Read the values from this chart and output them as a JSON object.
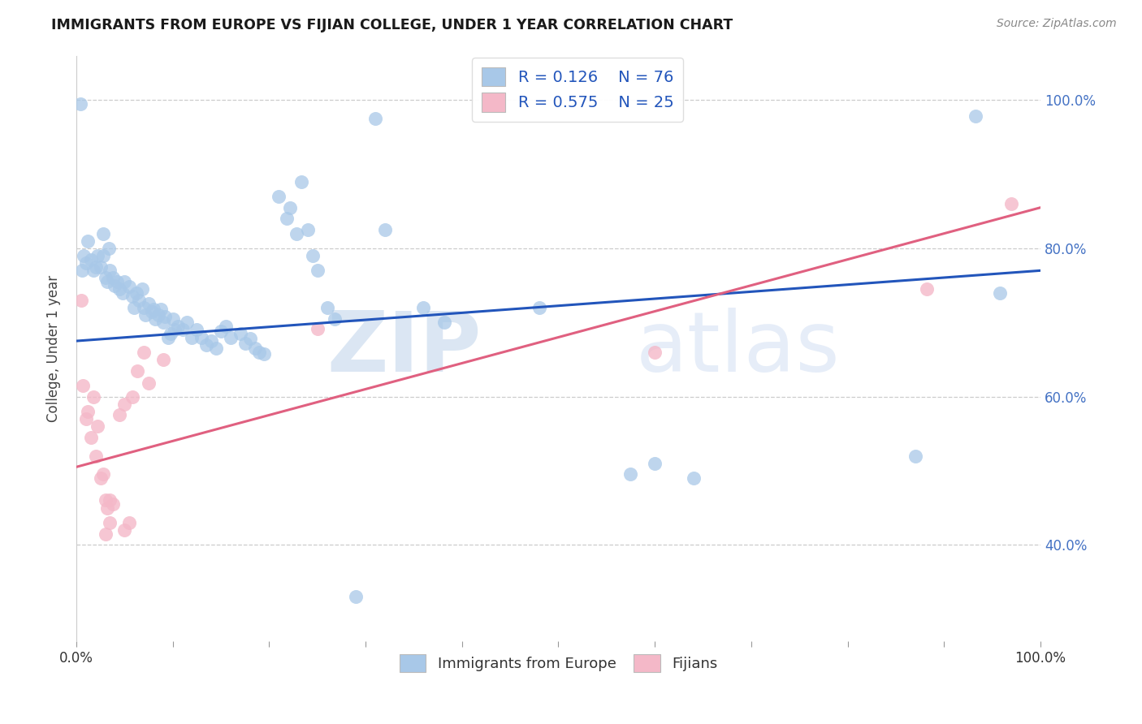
{
  "title": "IMMIGRANTS FROM EUROPE VS FIJIAN COLLEGE, UNDER 1 YEAR CORRELATION CHART",
  "source": "Source: ZipAtlas.com",
  "ylabel": "College, Under 1 year",
  "xlim": [
    0,
    1
  ],
  "ylim": [
    0.27,
    1.06
  ],
  "ytick_vals": [
    0.4,
    0.6,
    0.8,
    1.0
  ],
  "ytick_labels": [
    "40.0%",
    "60.0%",
    "80.0%",
    "100.0%"
  ],
  "legend_r1": "0.126",
  "legend_n1": "76",
  "legend_r2": "0.575",
  "legend_n2": "25",
  "blue_color": "#a8c8e8",
  "pink_color": "#f4b8c8",
  "line_blue": "#2255bb",
  "line_pink": "#e06080",
  "watermark_zip": "ZIP",
  "watermark_atlas": "atlas",
  "blue_line_start": 0.675,
  "blue_line_end": 0.77,
  "pink_line_start": 0.505,
  "pink_line_end": 0.855,
  "blue_scatter": [
    [
      0.004,
      0.995
    ],
    [
      0.028,
      0.82
    ],
    [
      0.034,
      0.8
    ],
    [
      0.006,
      0.77
    ],
    [
      0.008,
      0.79
    ],
    [
      0.01,
      0.78
    ],
    [
      0.012,
      0.81
    ],
    [
      0.015,
      0.785
    ],
    [
      0.018,
      0.77
    ],
    [
      0.02,
      0.775
    ],
    [
      0.022,
      0.79
    ],
    [
      0.025,
      0.775
    ],
    [
      0.028,
      0.79
    ],
    [
      0.03,
      0.76
    ],
    [
      0.032,
      0.755
    ],
    [
      0.035,
      0.77
    ],
    [
      0.038,
      0.76
    ],
    [
      0.04,
      0.75
    ],
    [
      0.042,
      0.755
    ],
    [
      0.045,
      0.745
    ],
    [
      0.048,
      0.74
    ],
    [
      0.05,
      0.755
    ],
    [
      0.055,
      0.748
    ],
    [
      0.058,
      0.735
    ],
    [
      0.06,
      0.72
    ],
    [
      0.062,
      0.74
    ],
    [
      0.065,
      0.73
    ],
    [
      0.068,
      0.745
    ],
    [
      0.07,
      0.72
    ],
    [
      0.072,
      0.71
    ],
    [
      0.075,
      0.725
    ],
    [
      0.078,
      0.715
    ],
    [
      0.08,
      0.718
    ],
    [
      0.082,
      0.705
    ],
    [
      0.085,
      0.71
    ],
    [
      0.088,
      0.718
    ],
    [
      0.09,
      0.7
    ],
    [
      0.092,
      0.708
    ],
    [
      0.095,
      0.68
    ],
    [
      0.098,
      0.685
    ],
    [
      0.1,
      0.705
    ],
    [
      0.102,
      0.69
    ],
    [
      0.105,
      0.695
    ],
    [
      0.11,
      0.69
    ],
    [
      0.115,
      0.7
    ],
    [
      0.12,
      0.68
    ],
    [
      0.125,
      0.69
    ],
    [
      0.13,
      0.68
    ],
    [
      0.135,
      0.67
    ],
    [
      0.14,
      0.675
    ],
    [
      0.145,
      0.665
    ],
    [
      0.15,
      0.688
    ],
    [
      0.155,
      0.695
    ],
    [
      0.16,
      0.68
    ],
    [
      0.17,
      0.685
    ],
    [
      0.175,
      0.672
    ],
    [
      0.18,
      0.678
    ],
    [
      0.185,
      0.665
    ],
    [
      0.19,
      0.66
    ],
    [
      0.195,
      0.658
    ],
    [
      0.21,
      0.87
    ],
    [
      0.218,
      0.84
    ],
    [
      0.222,
      0.855
    ],
    [
      0.228,
      0.82
    ],
    [
      0.233,
      0.89
    ],
    [
      0.24,
      0.825
    ],
    [
      0.245,
      0.79
    ],
    [
      0.25,
      0.77
    ],
    [
      0.26,
      0.72
    ],
    [
      0.268,
      0.705
    ],
    [
      0.29,
      0.33
    ],
    [
      0.31,
      0.975
    ],
    [
      0.32,
      0.825
    ],
    [
      0.36,
      0.72
    ],
    [
      0.382,
      0.7
    ],
    [
      0.48,
      0.72
    ],
    [
      0.575,
      0.495
    ],
    [
      0.6,
      0.51
    ],
    [
      0.64,
      0.49
    ],
    [
      0.87,
      0.52
    ],
    [
      0.933,
      0.978
    ],
    [
      0.958,
      0.74
    ]
  ],
  "pink_scatter": [
    [
      0.005,
      0.73
    ],
    [
      0.007,
      0.615
    ],
    [
      0.01,
      0.57
    ],
    [
      0.012,
      0.58
    ],
    [
      0.015,
      0.545
    ],
    [
      0.018,
      0.6
    ],
    [
      0.02,
      0.52
    ],
    [
      0.022,
      0.56
    ],
    [
      0.025,
      0.49
    ],
    [
      0.028,
      0.495
    ],
    [
      0.03,
      0.46
    ],
    [
      0.032,
      0.45
    ],
    [
      0.035,
      0.46
    ],
    [
      0.038,
      0.455
    ],
    [
      0.045,
      0.575
    ],
    [
      0.05,
      0.59
    ],
    [
      0.058,
      0.6
    ],
    [
      0.063,
      0.635
    ],
    [
      0.07,
      0.66
    ],
    [
      0.075,
      0.618
    ],
    [
      0.09,
      0.65
    ],
    [
      0.03,
      0.415
    ],
    [
      0.035,
      0.43
    ],
    [
      0.05,
      0.42
    ],
    [
      0.055,
      0.43
    ],
    [
      0.25,
      0.692
    ],
    [
      0.6,
      0.66
    ],
    [
      0.882,
      0.745
    ],
    [
      0.97,
      0.86
    ]
  ]
}
